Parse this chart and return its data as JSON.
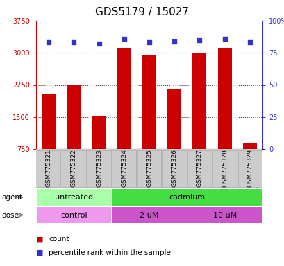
{
  "title": "GDS5179 / 15027",
  "samples": [
    "GSM775321",
    "GSM775322",
    "GSM775323",
    "GSM775324",
    "GSM775325",
    "GSM775326",
    "GSM775327",
    "GSM775328",
    "GSM775329"
  ],
  "counts": [
    2050,
    2250,
    1520,
    3120,
    2960,
    2150,
    2990,
    3100,
    900
  ],
  "percentile_ranks": [
    83,
    83,
    82,
    86,
    83,
    84,
    85,
    86,
    83
  ],
  "ylim_left": [
    750,
    3750
  ],
  "ylim_right": [
    0,
    100
  ],
  "yticks_left": [
    750,
    1500,
    2250,
    3000,
    3750
  ],
  "yticks_right": [
    0,
    25,
    50,
    75,
    100
  ],
  "ytick_labels_right": [
    "0",
    "25",
    "50",
    "75",
    "100%"
  ],
  "bar_color": "#cc0000",
  "dot_color": "#3333cc",
  "bar_bottom": 750,
  "agent_groups": [
    {
      "label": "untreated",
      "start": 0,
      "end": 3,
      "color": "#aaffaa"
    },
    {
      "label": "cadmium",
      "start": 3,
      "end": 9,
      "color": "#44dd44"
    }
  ],
  "dose_groups": [
    {
      "label": "control",
      "start": 0,
      "end": 3,
      "color": "#ee99ee"
    },
    {
      "label": "2 uM",
      "start": 3,
      "end": 6,
      "color": "#cc55cc"
    },
    {
      "label": "10 uM",
      "start": 6,
      "end": 9,
      "color": "#cc55cc"
    }
  ],
  "label_agent": "agent",
  "label_dose": "dose",
  "tick_color_left": "#cc0000",
  "tick_color_right": "#3333cc",
  "bg_white": "#ffffff",
  "bg_gray": "#cccccc",
  "title_fontsize": 11,
  "tick_fontsize": 7,
  "sample_fontsize": 6.5,
  "row_fontsize": 8,
  "legend_fontsize": 7.5
}
